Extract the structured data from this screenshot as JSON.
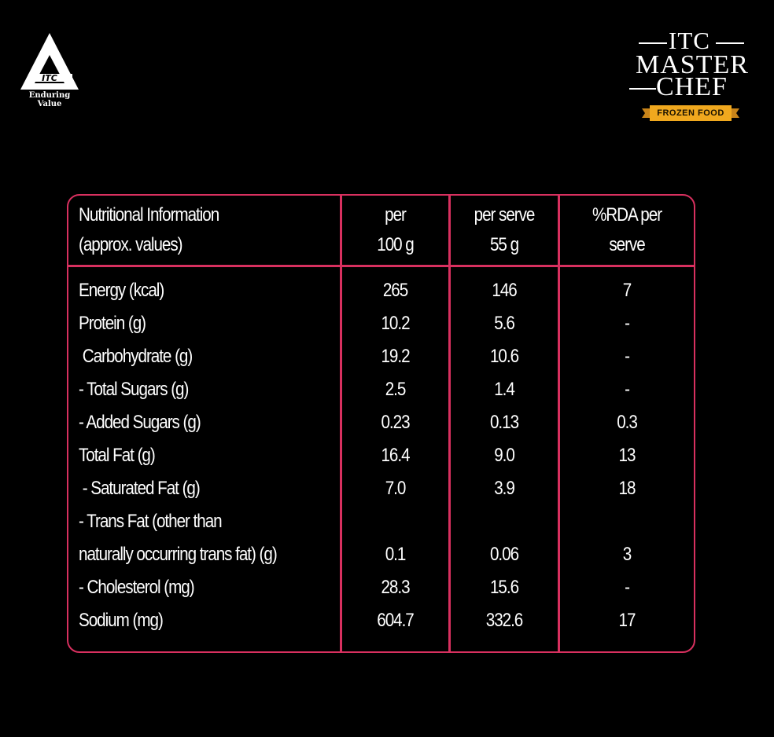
{
  "itc_logo": {
    "icon": "itc-triangle-logo-icon",
    "letters": "ITC",
    "tagline": "Enduring Value"
  },
  "masterchef_logo": {
    "line1": "ITC",
    "line2": "MASTER",
    "line3": "CHEF",
    "banner": "FROZEN FOOD",
    "banner_color": "#f0a81e"
  },
  "colors": {
    "background": "#000000",
    "table_border": "#d8305f",
    "text": "#ffffff"
  },
  "table": {
    "headers": {
      "nutrient": [
        "Nutritional Information",
        "(approx. values)"
      ],
      "per100": [
        "per",
        "100 g"
      ],
      "perserve": [
        "per serve",
        "55 g"
      ],
      "rda": [
        "%RDA per",
        "serve"
      ]
    },
    "rows": [
      {
        "label": "Energy (kcal)",
        "per100": "265",
        "perserve": "146",
        "rda": "7"
      },
      {
        "label": "Protein (g)",
        "per100": "10.2",
        "perserve": "5.6",
        "rda": "-"
      },
      {
        "label": " Carbohydrate (g)",
        "per100": "19.2",
        "perserve": "10.6",
        "rda": "-"
      },
      {
        "label": "- Total Sugars (g)",
        "per100": "2.5",
        "perserve": "1.4",
        "rda": "-"
      },
      {
        "label": "- Added Sugars (g)",
        "per100": "0.23",
        "perserve": "0.13",
        "rda": "0.3"
      },
      {
        "label": "Total Fat (g)",
        "per100": "16.4",
        "perserve": "9.0",
        "rda": "13"
      },
      {
        "label": " - Saturated Fat (g)",
        "per100": "7.0",
        "perserve": "3.9",
        "rda": "18"
      },
      {
        "label": "- Trans Fat (other than",
        "per100": "",
        "perserve": "",
        "rda": ""
      },
      {
        "label": "naturally occurring trans fat) (g)",
        "per100": "0.1",
        "perserve": "0.06",
        "rda": "3"
      },
      {
        "label": "- Cholesterol (mg)",
        "per100": "28.3",
        "perserve": "15.6",
        "rda": "-"
      },
      {
        "label": "Sodium (mg)",
        "per100": "604.7",
        "perserve": "332.6",
        "rda": "17"
      }
    ]
  }
}
